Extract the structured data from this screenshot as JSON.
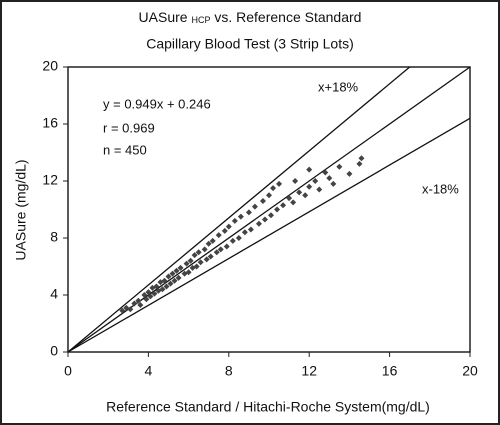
{
  "chart_data": {
    "type": "scatter",
    "title": {
      "main": "UASure",
      "subscript": "HCP",
      "rest": "vs. Reference Standard"
    },
    "subtitle": "Capillary Blood Test (3 Strip Lots)",
    "x_label": "Reference Standard / Hitachi-Roche System(mg/dL)",
    "y_label": "UASure (mg/dL)",
    "annotations": {
      "equation": "y = 0.949x + 0.246",
      "r": "r = 0.969",
      "n": "n = 450",
      "upper": "x+18%",
      "lower": "x-18%"
    },
    "xlim": [
      0,
      20
    ],
    "ylim": [
      0,
      20
    ],
    "xticks": [
      0,
      4,
      8,
      12,
      16,
      20
    ],
    "yticks": [
      0,
      4,
      8,
      12,
      16,
      20
    ],
    "color": "#444444",
    "reference_lines": [
      {
        "x": [
          0,
          17
        ],
        "y": [
          0,
          20
        ]
      },
      {
        "x": [
          0,
          20
        ],
        "y": [
          0,
          20
        ]
      },
      {
        "x": [
          0,
          20
        ],
        "y": [
          0,
          16.4
        ]
      }
    ],
    "x": [
      2.7,
      2.9,
      3.1,
      3.3,
      3.5,
      3.6,
      3.8,
      3.9,
      4.0,
      4.1,
      4.2,
      4.3,
      4.4,
      4.5,
      4.6,
      4.7,
      4.8,
      4.9,
      5.0,
      5.1,
      5.2,
      5.3,
      5.4,
      5.5,
      5.6,
      5.8,
      5.9,
      6.0,
      6.1,
      6.2,
      6.3,
      6.4,
      6.5,
      6.6,
      6.8,
      6.9,
      7.0,
      7.1,
      7.2,
      7.4,
      7.5,
      7.6,
      7.8,
      7.9,
      8.0,
      8.2,
      8.3,
      8.5,
      8.6,
      8.8,
      9.0,
      9.1,
      9.3,
      9.5,
      9.7,
      9.8,
      10.0,
      10.1,
      10.2,
      10.4,
      10.5,
      10.7,
      11.0,
      11.2,
      11.5,
      11.8,
      12.0,
      12.3,
      12.5,
      12.8,
      13.0,
      13.2,
      13.5,
      14.0,
      14.5,
      14.6,
      12.0,
      11.3
    ],
    "values": [
      2.9,
      3.1,
      3.0,
      3.4,
      3.6,
      3.3,
      4.0,
      3.7,
      4.2,
      3.9,
      4.5,
      4.1,
      4.6,
      4.3,
      4.9,
      4.4,
      5.0,
      4.6,
      5.3,
      4.8,
      5.5,
      5.0,
      5.7,
      5.2,
      5.9,
      5.5,
      6.2,
      5.6,
      6.4,
      5.9,
      6.8,
      6.0,
      7.0,
      6.3,
      7.2,
      6.5,
      7.6,
      6.7,
      7.8,
      7.0,
      8.2,
      7.2,
      8.5,
      7.4,
      8.8,
      7.8,
      9.2,
      8.0,
      9.5,
      8.4,
      9.8,
      8.6,
      10.2,
      9.0,
      10.6,
      9.3,
      11.0,
      9.6,
      11.5,
      10.0,
      11.8,
      10.3,
      10.8,
      10.5,
      11.2,
      11.0,
      11.6,
      12.0,
      11.4,
      12.6,
      12.2,
      11.8,
      13.0,
      12.5,
      13.2,
      13.6,
      12.8,
      12.0
    ]
  }
}
